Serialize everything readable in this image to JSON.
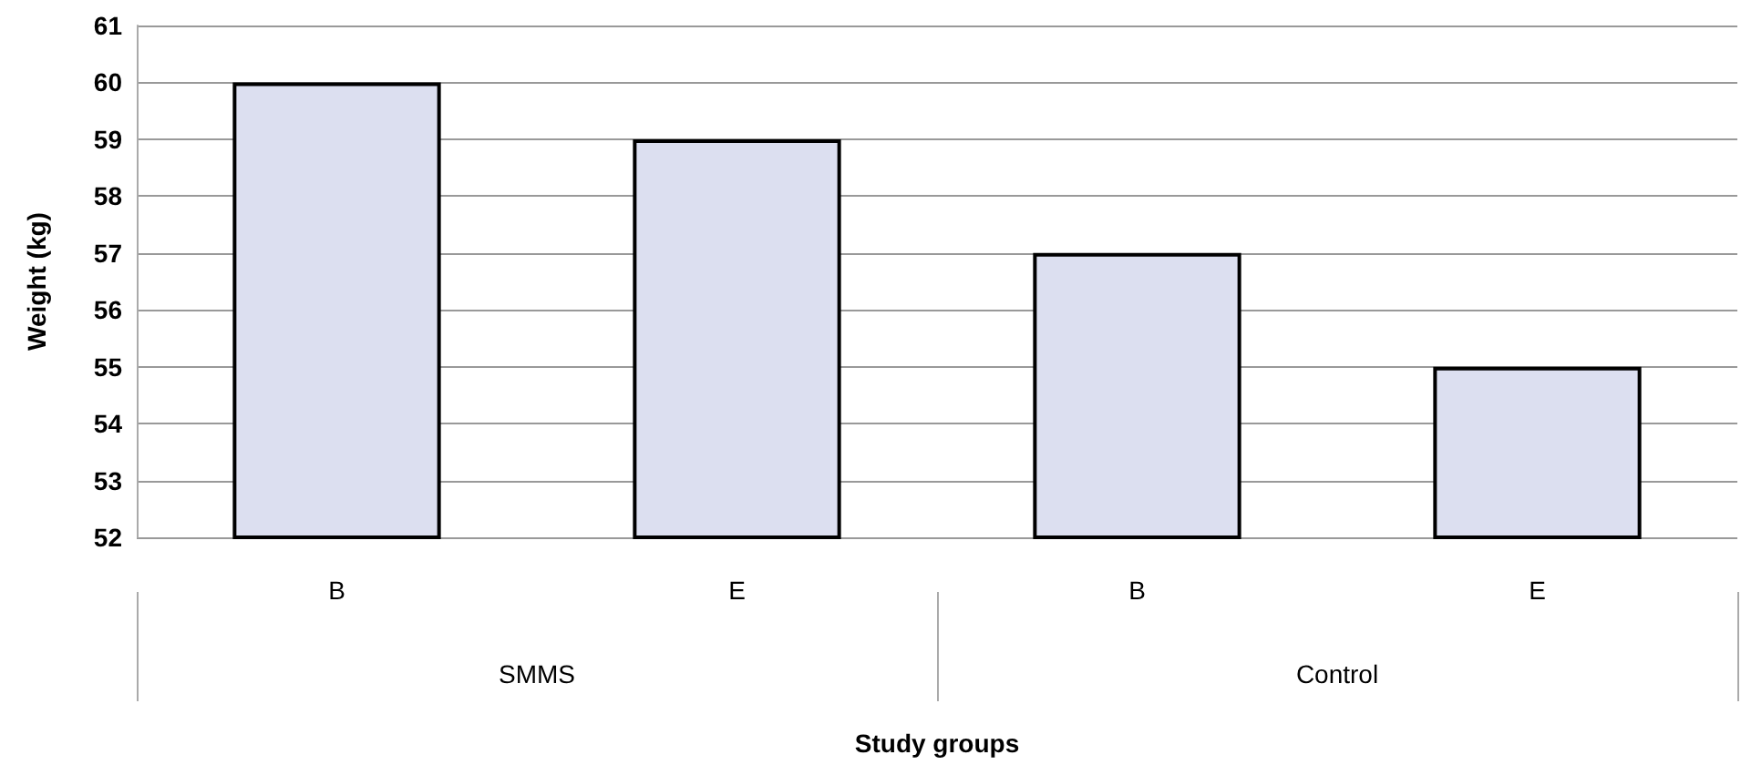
{
  "chart_data": {
    "type": "bar",
    "xlabel": "Study groups",
    "ylabel": "Weight (kg)",
    "categories": [
      "B",
      "E",
      "B",
      "E"
    ],
    "values": [
      60,
      59,
      57,
      55
    ],
    "color": "#dcdff0",
    "ylim": [
      52,
      61
    ],
    "yticks": [
      52,
      53,
      54,
      55,
      56,
      57,
      58,
      59,
      60,
      61
    ],
    "grid": "y",
    "annotations": [
      "SMMS",
      "Control"
    ]
  }
}
